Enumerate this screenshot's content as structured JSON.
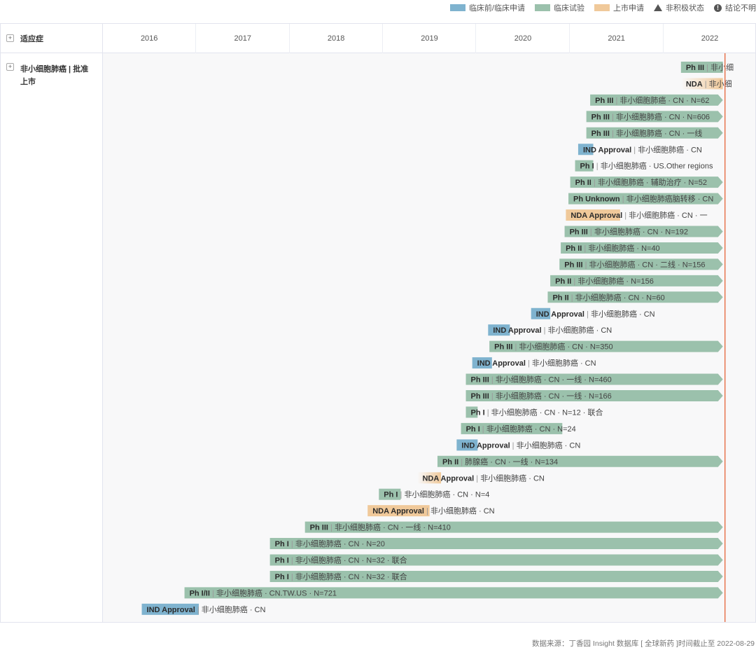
{
  "legend": [
    {
      "label": "临床前/临床申请",
      "icon": "swatch",
      "color": "#7fb3cf"
    },
    {
      "label": "临床试验",
      "icon": "swatch",
      "color": "#9bc1ac"
    },
    {
      "label": "上市申请",
      "icon": "swatch",
      "color": "#f0c99a"
    },
    {
      "label": "非积极状态",
      "icon": "triangle-icon"
    },
    {
      "label": "结论不明",
      "icon": "exclamation-icon"
    }
  ],
  "header": {
    "first_col": "适应症"
  },
  "indication": {
    "label": "非小细胞肺癌 | 批准上市"
  },
  "colors": {
    "preclinical": "#7fb3cf",
    "clinical": "#9bc1ac",
    "filing": "#f0c99a",
    "today_line": "#e8754f"
  },
  "chart_data": {
    "type": "gantt",
    "x_axis": {
      "type": "time",
      "ticks": [
        "2016",
        "2017",
        "2018",
        "2019",
        "2020",
        "2021",
        "2022"
      ],
      "range": [
        "2016-01-01",
        "2022-12-31"
      ]
    },
    "cutoff_date": "2022-08-29",
    "bars": [
      {
        "stage": "clinical",
        "phase": "Ph III",
        "detail": "非小细",
        "start": "2022-03-10",
        "arrow": false
      },
      {
        "stage": "filing",
        "phase": "NDA",
        "detail": "非小细",
        "start": "2022-03-10",
        "fade": true
      },
      {
        "stage": "clinical",
        "phase": "Ph III",
        "detail": "非小细胞肺癌 · CN · N=62",
        "start": "2021-03-20",
        "arrow": true
      },
      {
        "stage": "clinical",
        "phase": "Ph III",
        "detail": "非小细胞肺癌 · CN · N=606",
        "start": "2021-03-05",
        "arrow": true
      },
      {
        "stage": "clinical",
        "phase": "Ph III",
        "detail": "非小细胞肺癌 · CN · 一线",
        "start": "2021-03-05",
        "arrow": true
      },
      {
        "stage": "preclinical",
        "phase": "IND Approval",
        "detail": "非小细胞肺癌 · CN",
        "start": "2021-02-01",
        "end": "2021-04-01"
      },
      {
        "stage": "clinical",
        "phase": "Ph I",
        "detail": "非小细胞肺癌 · US.Other regions",
        "start": "2021-01-20",
        "end": "2021-04-01"
      },
      {
        "stage": "clinical",
        "phase": "Ph II",
        "detail": "非小细胞肺癌 · 辅助治疗 · N=52",
        "start": "2021-01-01",
        "arrow": true
      },
      {
        "stage": "clinical",
        "phase": "Ph Unknown",
        "detail": "非小细胞肺癌脑转移 · CN",
        "start": "2020-12-25",
        "arrow": true
      },
      {
        "stage": "filing",
        "phase": "NDA Approval",
        "detail": "非小细胞肺癌 · CN · 一",
        "start": "2020-12-15",
        "end": "2021-07-15"
      },
      {
        "stage": "clinical",
        "phase": "Ph III",
        "detail": "非小细胞肺癌 · CN · N=192",
        "start": "2020-12-10",
        "arrow": true
      },
      {
        "stage": "clinical",
        "phase": "Ph II",
        "detail": "非小细胞肺癌 · N=40",
        "start": "2020-11-25",
        "arrow": true
      },
      {
        "stage": "clinical",
        "phase": "Ph III",
        "detail": "非小细胞肺癌 · CN · 二线 · N=156",
        "start": "2020-11-20",
        "arrow": true
      },
      {
        "stage": "clinical",
        "phase": "Ph II",
        "detail": "非小细胞肺癌 · N=156",
        "start": "2020-10-15",
        "arrow": true
      },
      {
        "stage": "clinical",
        "phase": "Ph II",
        "detail": "非小细胞肺癌 · CN · N=60",
        "start": "2020-10-05",
        "arrow": true
      },
      {
        "stage": "preclinical",
        "phase": "IND Approval",
        "detail": "非小细胞肺癌 · CN",
        "start": "2020-08-01",
        "end": "2020-10-15"
      },
      {
        "stage": "preclinical",
        "phase": "IND Approval",
        "detail": "非小细胞肺癌 · CN",
        "start": "2020-02-15",
        "end": "2020-05-10"
      },
      {
        "stage": "clinical",
        "phase": "Ph III",
        "detail": "非小细胞肺癌 · CN · N=350",
        "start": "2020-02-20",
        "arrow": true
      },
      {
        "stage": "preclinical",
        "phase": "IND Approval",
        "detail": "非小细胞肺癌 · CN",
        "start": "2019-12-15",
        "end": "2020-03-01"
      },
      {
        "stage": "clinical",
        "phase": "Ph III",
        "detail": "非小细胞肺癌 · CN · 一线 · N=460",
        "start": "2019-11-20",
        "arrow": true
      },
      {
        "stage": "clinical",
        "phase": "Ph III",
        "detail": "非小细胞肺癌 · CN · 一线 · N=166",
        "start": "2019-11-20",
        "arrow": true
      },
      {
        "stage": "clinical",
        "phase": "Ph I",
        "detail": "非小细胞肺癌 · CN · N=12 · 联合",
        "start": "2019-11-20",
        "end": "2020-01-05"
      },
      {
        "stage": "clinical",
        "phase": "Ph I",
        "detail": "非小细胞肺癌 · CN · N=24",
        "start": "2019-11-01",
        "end": "2020-12-01"
      },
      {
        "stage": "preclinical",
        "phase": "IND Approval",
        "detail": "非小细胞肺癌 · CN",
        "start": "2019-10-15",
        "end": "2020-01-05"
      },
      {
        "stage": "clinical",
        "phase": "Ph II",
        "detail": "肺腺癌 · CN · 一线 · N=134",
        "start": "2019-08-01",
        "arrow": true
      },
      {
        "stage": "filing",
        "phase": "NDA Approval",
        "detail": "非小细胞肺癌 · CN",
        "start": "2019-05-15",
        "end": "2019-08-15",
        "fade": true
      },
      {
        "stage": "clinical",
        "phase": "Ph I",
        "detail": "非小细胞肺癌 · CN · N=4",
        "start": "2018-12-15",
        "end": "2019-03-10"
      },
      {
        "stage": "filing",
        "phase": "NDA Approval",
        "detail": "非小细胞肺癌 · CN",
        "start": "2018-11-01",
        "end": "2019-07-01"
      },
      {
        "stage": "clinical",
        "phase": "Ph III",
        "detail": "非小细胞肺癌 · CN · 一线 · N=410",
        "start": "2018-03-01",
        "arrow": true
      },
      {
        "stage": "clinical",
        "phase": "Ph I",
        "detail": "非小细胞肺癌 · CN · N=20",
        "start": "2017-10-15",
        "arrow": true
      },
      {
        "stage": "clinical",
        "phase": "Ph I",
        "detail": "非小细胞肺癌 · CN · N=32 · 联合",
        "start": "2017-10-15",
        "arrow": true
      },
      {
        "stage": "clinical",
        "phase": "Ph I",
        "detail": "非小细胞肺癌 · CN · N=32 · 联合",
        "start": "2017-10-15",
        "arrow": true
      },
      {
        "stage": "clinical",
        "phase": "Ph I/II",
        "detail": "非小细胞肺癌 · CN.TW.US · N=721",
        "start": "2016-11-15",
        "arrow": true
      },
      {
        "stage": "preclinical",
        "phase": "IND Approval",
        "detail": "非小细胞肺癌 · CN",
        "start": "2016-06-01",
        "end": "2017-01-10"
      }
    ]
  },
  "footer": {
    "source": "数据来源：丁香园 Insight 数据库 [ 全球新药 ]时间截止至 2022-08-29"
  }
}
